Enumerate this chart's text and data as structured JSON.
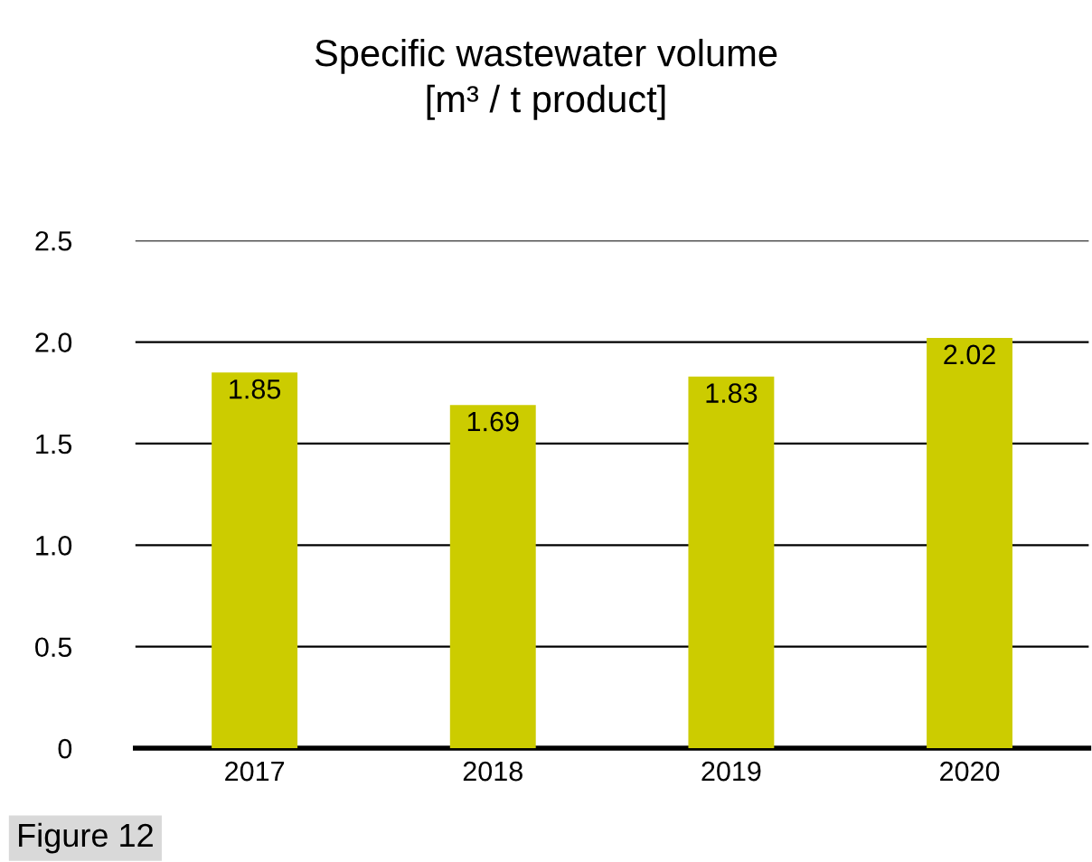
{
  "chart_data": {
    "type": "bar",
    "title": "Specific wastewater volume\n[m³ / t product]",
    "categories": [
      "2017",
      "2018",
      "2019",
      "2020"
    ],
    "values": [
      1.85,
      1.69,
      1.83,
      2.02
    ],
    "color": "#cccc00",
    "ylim": [
      0,
      2.5
    ],
    "yticks": [
      0,
      0.5,
      {
        "value": 1.0,
        "label": "1.0"
      },
      1.5,
      {
        "value": 2.0,
        "label": "2.0"
      },
      2.5
    ],
    "grid": "y",
    "data_labels": true,
    "annotations": [
      "Figure 12"
    ]
  }
}
